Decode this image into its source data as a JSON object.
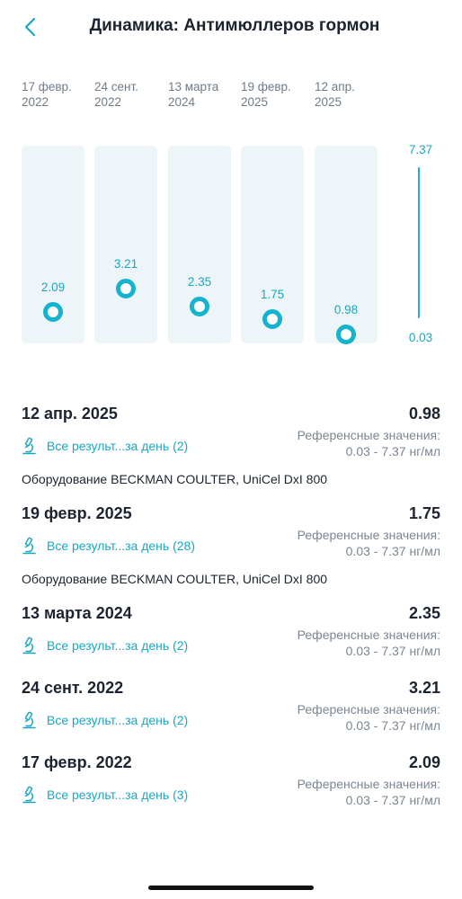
{
  "header": {
    "title": "Динамика: Антимюллеров гормон",
    "back_icon": "chevron-left-icon"
  },
  "chart_data": {
    "type": "scatter",
    "categories": [
      [
        "17 февр.",
        "2022"
      ],
      [
        "24 сент.",
        "2022"
      ],
      [
        "13 марта",
        "2024"
      ],
      [
        "19 февр.",
        "2025"
      ],
      [
        "12 апр.",
        "2025"
      ]
    ],
    "values": [
      2.09,
      3.21,
      2.35,
      1.75,
      0.98
    ],
    "value_labels": [
      "2.09",
      "3.21",
      "2.35",
      "1.75",
      "0.98"
    ],
    "scale_min": 0.03,
    "scale_max": 7.37,
    "scale_min_label": "0.03",
    "scale_max_label": "7.37"
  },
  "results": [
    {
      "date": "12 апр. 2025",
      "value": "0.98",
      "link": "Все результ...за день (2)",
      "ref_title": "Референсные значения:",
      "ref_range": "0.03 - 7.37 нг/мл",
      "equipment": "Оборудование BECKMAN COULTER, UniCel DxI 800"
    },
    {
      "date": "19 февр. 2025",
      "value": "1.75",
      "link": "Все результ...за день (28)",
      "ref_title": "Референсные значения:",
      "ref_range": "0.03 - 7.37 нг/мл",
      "equipment": "Оборудование BECKMAN COULTER, UniCel DxI 800"
    },
    {
      "date": "13 марта 2024",
      "value": "2.35",
      "link": "Все результ...за день (2)",
      "ref_title": "Референсные значения:",
      "ref_range": "0.03 - 7.37 нг/мл",
      "equipment": ""
    },
    {
      "date": "24 сент. 2022",
      "value": "3.21",
      "link": "Все результ...за день (2)",
      "ref_title": "Референсные значения:",
      "ref_range": "0.03 - 7.37 нг/мл",
      "equipment": ""
    },
    {
      "date": "17 февр. 2022",
      "value": "2.09",
      "link": "Все результ...за день (3)",
      "ref_title": "Референсные значения:",
      "ref_range": "0.03 - 7.37 нг/мл",
      "equipment": ""
    }
  ],
  "icons": {
    "link_icon": "microscope-icon"
  },
  "colors": {
    "accent": "#1aa7c2",
    "column_bg": "#eef5f8",
    "text": "#1c2430",
    "muted": "#7b8692"
  }
}
